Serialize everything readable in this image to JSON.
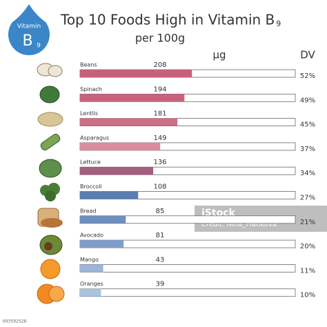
{
  "chart_data": {
    "type": "bar",
    "orientation": "horizontal",
    "title": "Top 10 Foods High in Vitamin B",
    "title_subscript": "9",
    "subtitle": "per 100g",
    "badge": {
      "label": "Vitamin",
      "letter": "B",
      "subscript": "9"
    },
    "value_header": "µg",
    "dv_header": "DV",
    "categories": [
      "Beans",
      "Spinach",
      "Lentils",
      "Asparagus",
      "Lettuce",
      "Broccoli",
      "Bread",
      "Avocado",
      "Mango",
      "Oranges"
    ],
    "values": [
      208,
      194,
      181,
      149,
      136,
      108,
      85,
      81,
      43,
      39
    ],
    "dv_values": [
      52,
      49,
      45,
      37,
      34,
      27,
      21,
      20,
      11,
      10
    ],
    "dv_labels": [
      "52%",
      "49%",
      "45%",
      "37%",
      "34%",
      "27%",
      "21%",
      "20%",
      "11%",
      "10%"
    ],
    "colors": [
      "#c8607a",
      "#c9627c",
      "#cd6f85",
      "#d98ba1",
      "#a35e80",
      "#5a7eb0",
      "#6e8ec0",
      "#7f9ccb",
      "#9bb6da",
      "#aac3e1"
    ],
    "xlim": [
      0,
      400
    ],
    "watermark": {
      "brand": "iStock",
      "credit": "Credit: Nina_Piankova"
    },
    "image_id": "693592528"
  }
}
